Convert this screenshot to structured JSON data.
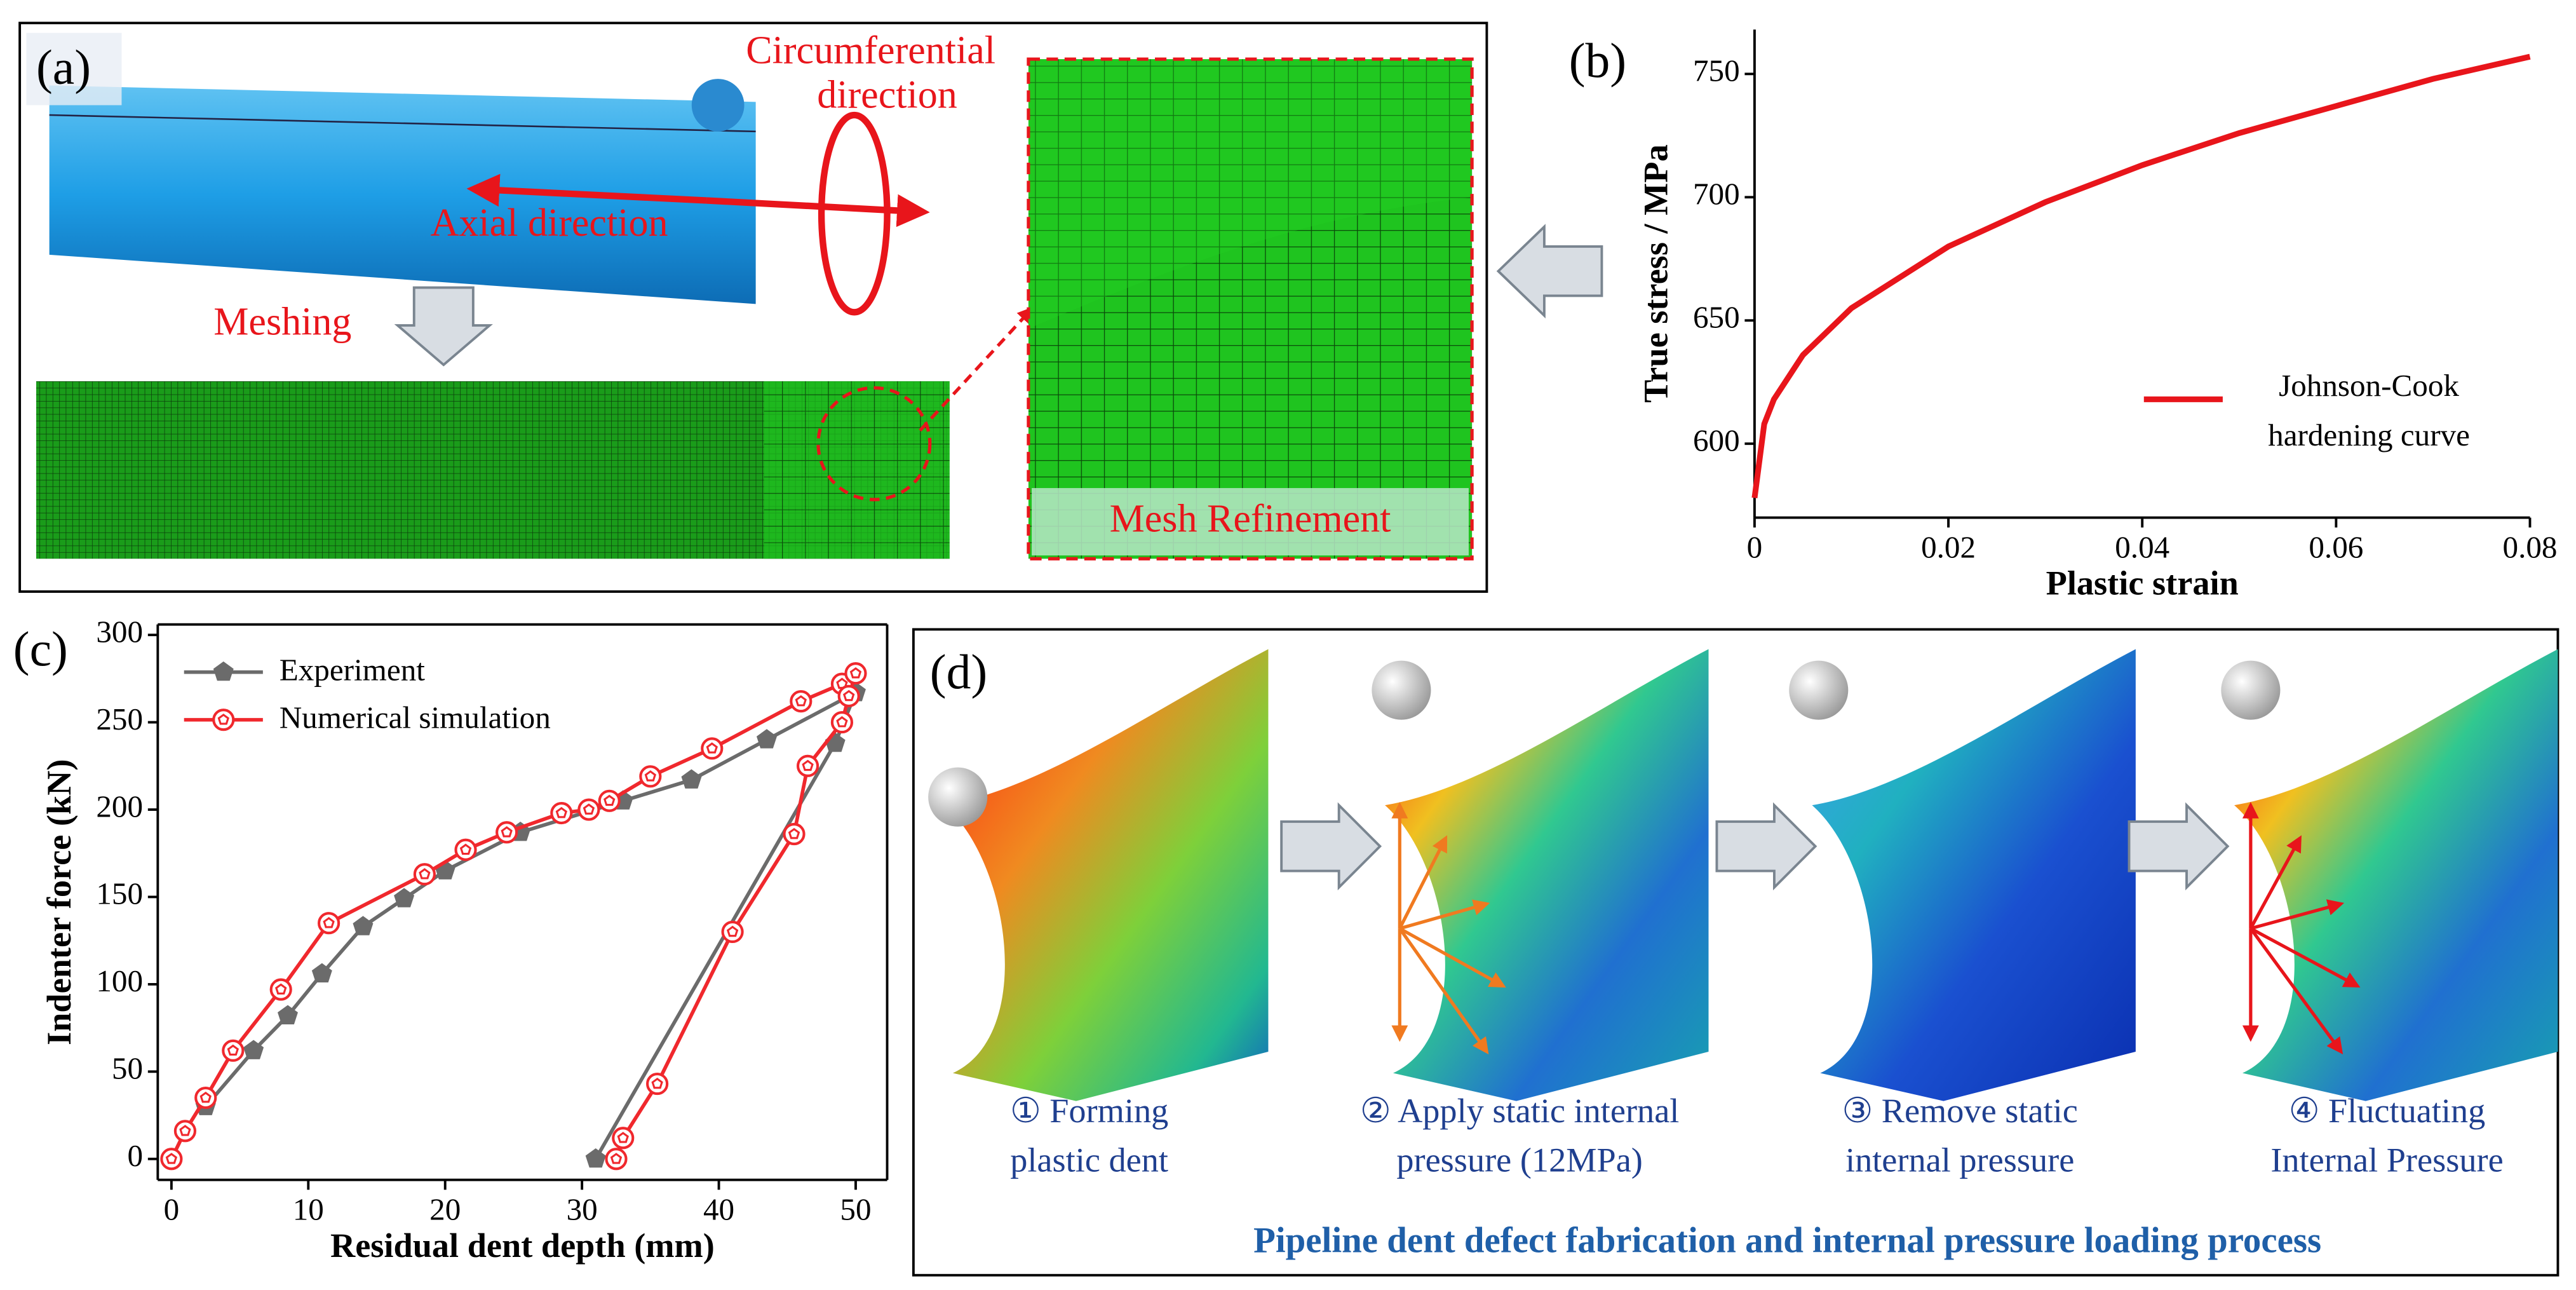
{
  "chart_data": [
    {
      "type": "line",
      "panel_label": "(b)",
      "x_label": "Plastic strain",
      "y_label": "True stress / MPa",
      "xlim": [
        0,
        0.08
      ],
      "ylim": [
        570,
        768
      ],
      "xticks": [
        0,
        0.02,
        0.04,
        0.06,
        0.08
      ],
      "yticks": [
        600,
        650,
        700,
        750
      ],
      "frame": "axes",
      "legend": "lower-right",
      "series": [
        {
          "name": "Johnson-Cook hardening curve",
          "color": "#e8151b",
          "x": [
            0,
            0.001,
            0.002,
            0.005,
            0.01,
            0.02,
            0.03,
            0.04,
            0.05,
            0.06,
            0.07,
            0.08
          ],
          "values": [
            578,
            608,
            618,
            636,
            655,
            680,
            698,
            713,
            726,
            737,
            748,
            757
          ]
        }
      ]
    },
    {
      "type": "line",
      "panel_label": "(c)",
      "x_label": "Residual dent depth (mm)",
      "y_label": "Indenter force (kN)",
      "xlim": [
        -1,
        52.3
      ],
      "ylim": [
        -12,
        306
      ],
      "xticks": [
        0,
        10,
        20,
        30,
        40,
        50
      ],
      "yticks": [
        0,
        50,
        100,
        150,
        200,
        250,
        300
      ],
      "frame": "box",
      "legend": "upper-left",
      "series": [
        {
          "name": "Experiment",
          "color": "#6b6b6b",
          "marker": "filled-pentagon",
          "x": [
            2.5,
            6,
            8.5,
            11,
            14,
            17,
            20,
            25.5,
            33,
            38,
            43.5,
            50,
            48.5,
            31
          ],
          "values": [
            30,
            62,
            82,
            106,
            133,
            149,
            165,
            187,
            205,
            217,
            240,
            267,
            238,
            0
          ]
        },
        {
          "name": "Numerical simulation",
          "color": "#f0282d",
          "marker": "open-pentagon",
          "x": [
            0,
            1,
            2.5,
            4.5,
            8,
            11.5,
            18.5,
            21.5,
            24.5,
            28.5,
            30.5,
            32,
            35,
            39.5,
            46,
            49,
            50,
            49.5,
            49,
            46.5,
            45.5,
            41,
            35.5,
            33,
            32.5
          ],
          "values": [
            0,
            16,
            35,
            62,
            97,
            135,
            163,
            177,
            187,
            198,
            200,
            205,
            219,
            235,
            262,
            272,
            278,
            265,
            250,
            225,
            186,
            130,
            43,
            12,
            0
          ]
        }
      ]
    }
  ],
  "panels": {
    "a": {
      "label": "(a)",
      "circumferential": [
        "Circumferential",
        "direction"
      ],
      "axial": "Axial direction",
      "meshing": "Meshing",
      "refinement": "Mesh Refinement"
    },
    "d": {
      "label": "(d)",
      "steps": [
        [
          "① Forming",
          "plastic dent"
        ],
        [
          "② Apply static internal",
          "pressure (12MPa)"
        ],
        [
          "③ Remove static",
          "internal pressure"
        ],
        [
          "④ Fluctuating",
          "Internal Pressure"
        ]
      ],
      "caption": "Pipeline dent defect fabrication and internal pressure loading process"
    }
  }
}
